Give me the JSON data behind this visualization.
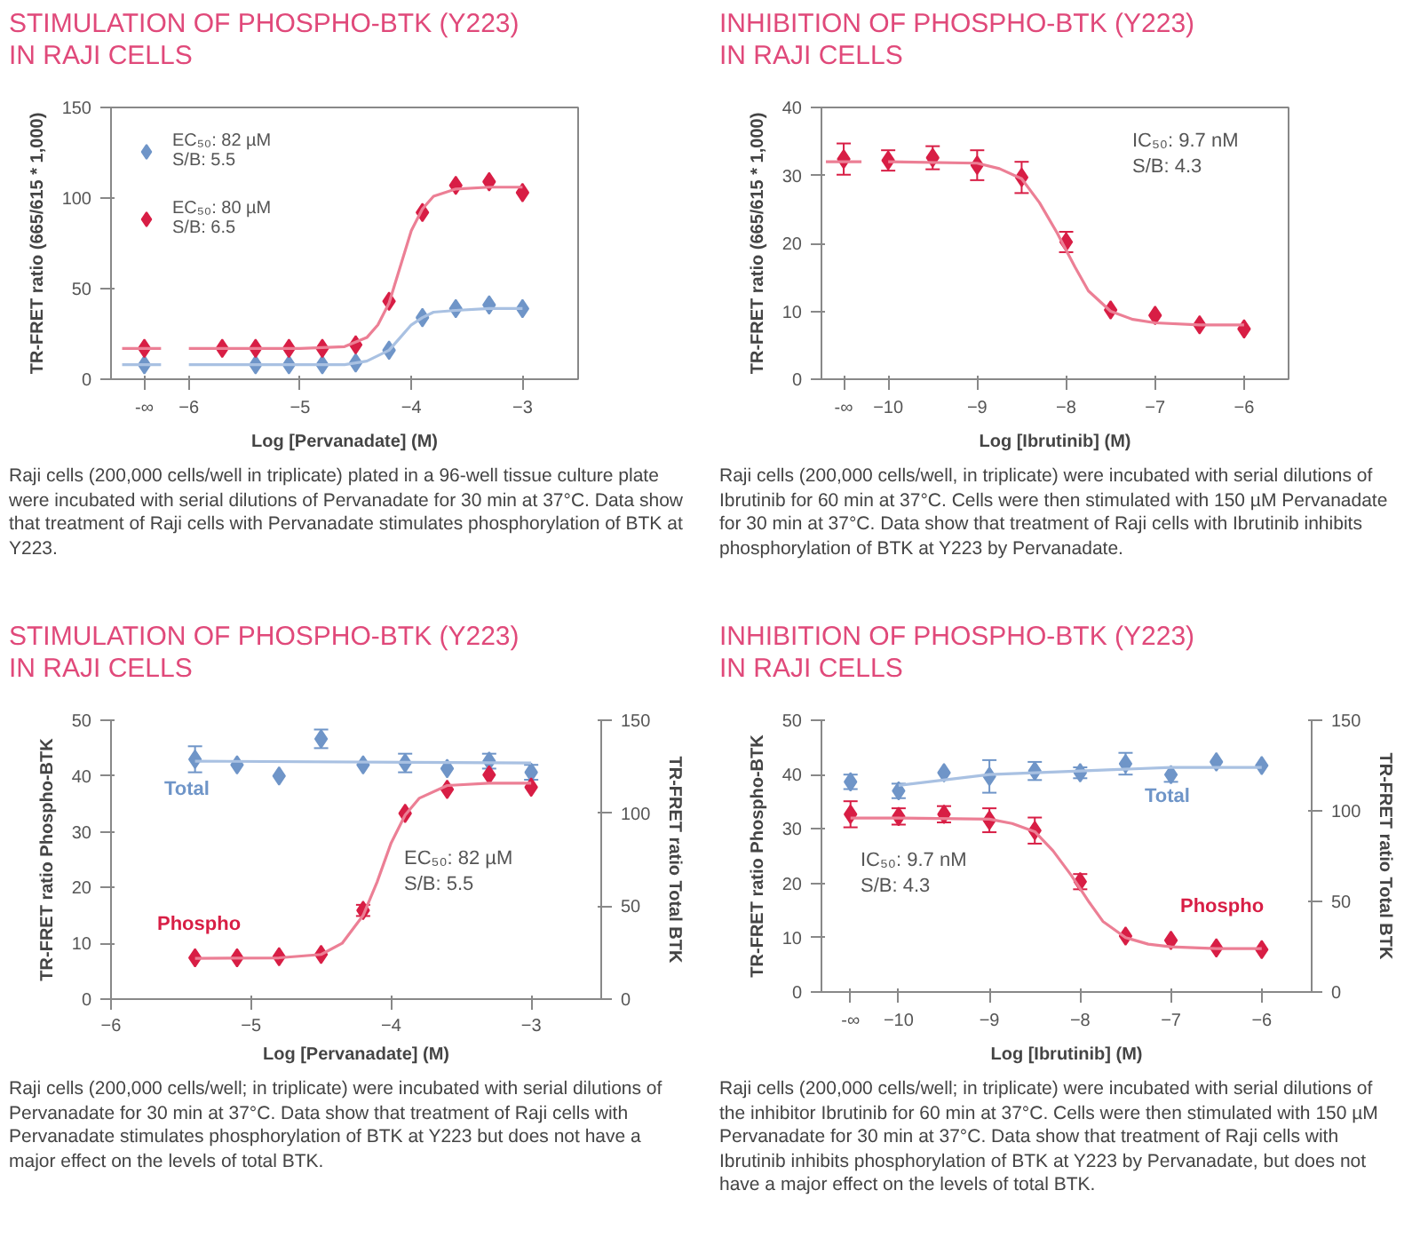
{
  "chart_data": [
    {
      "type": "scatter",
      "title": "STIMULATION OF PHOSPHO-BTK (Y223)\nIN RAJI CELLS",
      "xlabel": "Log [Pervanadate] (M)",
      "ylabel": "TR-FRET ratio (665/615 * 1,000)",
      "xlim": [
        -6.7,
        -2.5
      ],
      "ylim": [
        0,
        150
      ],
      "xticks": [
        {
          "value": -6.4,
          "label": "-∞"
        },
        -6,
        -5,
        -4,
        -3
      ],
      "yticks": [
        0,
        50,
        100,
        150
      ],
      "marker": "diamond",
      "legend": "top left",
      "series": [
        {
          "name": "EC₅₀: 82 µM\nS/B: 5.5",
          "color": "#6f95c8",
          "x": [
            -6.4,
            -5.4,
            -5.1,
            -4.8,
            -4.5,
            -4.2,
            -3.9,
            -3.6,
            -3.3,
            -3
          ],
          "values": [
            8,
            8,
            8,
            8,
            9,
            16,
            34,
            39,
            41,
            39
          ]
        },
        {
          "name": "EC₅₀: 80 µM\nS/B: 6.5",
          "color": "#d81e45",
          "x": [
            -6.4,
            -5.7,
            -5.4,
            -5.1,
            -4.8,
            -4.5,
            -4.2,
            -3.9,
            -3.6,
            -3.3,
            -3
          ],
          "values": [
            17,
            17,
            17,
            17,
            17,
            19,
            43,
            92,
            107,
            109,
            103
          ]
        },
        {
          "type": "line",
          "marker": "none",
          "color": "#a9c1e2",
          "x": [
            -6.6,
            -6.25,
            -6.1,
            -6,
            -5,
            -4.6,
            -4.4,
            -4.2,
            -4.1,
            -4,
            -3.9,
            -3.8,
            -3.6,
            -3.3,
            -3
          ],
          "values": [
            8,
            8,
            null,
            8,
            8,
            8,
            10,
            16,
            23,
            30,
            34,
            37,
            38,
            39,
            39
          ]
        },
        {
          "type": "line",
          "marker": "none",
          "color": "#ec7f95",
          "x": [
            -6.6,
            -6.25,
            -6.1,
            -6,
            -5,
            -4.6,
            -4.4,
            -4.3,
            -4.2,
            -4.1,
            -4,
            -3.9,
            -3.8,
            -3.6,
            -3.3,
            -3
          ],
          "values": [
            17,
            17,
            null,
            17,
            17,
            18,
            23,
            30,
            42,
            62,
            82,
            94,
            101,
            105,
            106,
            106
          ]
        }
      ],
      "annotations": [
        "Raji cells (200,000 cells/well in triplicate) plated in a 96-well tissue culture plate were incubated with serial dilutions of Pervanadate for 30 min at 37°C. Data show that treatment of Raji cells with Pervanadate stimulates phosphorylation of BTK at Y223."
      ]
    },
    {
      "type": "scatter",
      "title": "INHIBITION OF PHOSPHO-BTK (Y223)\nIN RAJI CELLS",
      "xlabel": "Log [Ibrutinib] (M)",
      "ylabel": "TR-FRET ratio (665/615 * 1,000)",
      "xlim": [
        -10.75,
        -5.5
      ],
      "ylim": [
        0,
        40
      ],
      "xticks": [
        {
          "value": -10.5,
          "label": "-∞"
        },
        -10,
        -9,
        -8,
        -7,
        -6
      ],
      "yticks": [
        0,
        10,
        20,
        30,
        40
      ],
      "marker": "diamond",
      "series": [
        {
          "color": "#d81e45",
          "x": [
            -10.5,
            -10,
            -9.5,
            -9,
            -8.5,
            -8,
            -7.5,
            -7,
            -6.5,
            -6
          ],
          "values": [
            32.4,
            32.2,
            32.6,
            31.5,
            29.7,
            20.2,
            10.2,
            9.4,
            8,
            7.4
          ],
          "errors": [
            2.3,
            1.5,
            1.7,
            2.2,
            2.3,
            1.5,
            null,
            null,
            null,
            null
          ]
        },
        {
          "type": "line",
          "marker": "none",
          "color": "#ec7f95",
          "x": [
            -10.7,
            -10.3,
            -10.15,
            -10,
            -9,
            -8.75,
            -8.5,
            -8.3,
            -8.1,
            -8,
            -7.9,
            -7.75,
            -7.5,
            -7.25,
            -7,
            -6.5,
            -6
          ],
          "values": [
            32,
            32,
            null,
            32,
            31.8,
            31,
            29.5,
            26,
            21.5,
            19,
            16.5,
            13,
            10,
            8.8,
            8.3,
            8,
            8
          ]
        }
      ],
      "annotations": [
        "IC₅₀: 9.7 nM\nS/B: 4.3",
        "Raji cells (200,000 cells/well, in triplicate) were incubated with serial dilutions of Ibrutinib for 60 min at 37°C. Cells were then stimulated with 150 µM Pervanadate for 30 min at 37°C. Data show that treatment of Raji cells with Ibrutinib inhibits phosphorylation of BTK at Y223 by Pervanadate."
      ]
    },
    {
      "type": "scatter",
      "title": "STIMULATION OF PHOSPHO-BTK (Y223)\nIN RAJI CELLS",
      "xlabel": "Log [Pervanadate] (M)",
      "ylabel": "TR-FRET ratio Phospho-BTK",
      "y2label": "TR-FRET ratio Total BTK",
      "xlim": [
        -6,
        -2.5
      ],
      "ylim": [
        0,
        50
      ],
      "y2lim": [
        0,
        150
      ],
      "xticks": [
        -6,
        -5,
        -4,
        -3
      ],
      "yticks": [
        0,
        10,
        20,
        30,
        40,
        50
      ],
      "y2ticks": [
        0,
        50,
        100,
        150
      ],
      "marker": "diamond",
      "series": [
        {
          "name": "Total",
          "axis": "y2",
          "color": "#6f95c8",
          "x": [
            -5.4,
            -5.1,
            -4.8,
            -4.5,
            -4.2,
            -3.9,
            -3.6,
            -3.3,
            -3
          ],
          "values": [
            129,
            126,
            120,
            140,
            126,
            127,
            124,
            128,
            122
          ],
          "errors": [
            7,
            null,
            null,
            5,
            null,
            5,
            null,
            4,
            4
          ]
        },
        {
          "type": "line",
          "marker": "none",
          "axis": "y2",
          "color": "#a9c1e2",
          "x": [
            -5.4,
            -3
          ],
          "values": [
            128,
            127
          ]
        },
        {
          "name": "Phospho",
          "color": "#d81e45",
          "x": [
            -5.4,
            -5.1,
            -4.8,
            -4.5,
            -4.2,
            -3.9,
            -3.6,
            -3.3,
            -3
          ],
          "values": [
            7.4,
            7.4,
            7.6,
            8,
            15.9,
            33.3,
            37.6,
            40.2,
            38
          ],
          "errors": [
            null,
            null,
            null,
            null,
            1,
            null,
            null,
            null,
            null
          ]
        },
        {
          "type": "line",
          "marker": "none",
          "color": "#ec7f95",
          "x": [
            -5.4,
            -4.8,
            -4.5,
            -4.35,
            -4.2,
            -4.1,
            -4,
            -3.9,
            -3.8,
            -3.6,
            -3.3,
            -3
          ],
          "values": [
            7.3,
            7.4,
            8,
            10,
            15,
            21,
            28,
            33,
            36,
            38.3,
            38.7,
            38.7
          ]
        }
      ],
      "annotations": [
        "EC₅₀: 82 µM\nS/B: 5.5",
        "Raji cells (200,000 cells/well; in triplicate) were incubated with serial dilutions of Pervanadate for 30 min at 37°C. Data show that treatment of Raji cells with Pervanadate stimulates phosphorylation of BTK at Y223 but does not have a major effect on the levels of total BTK."
      ]
    },
    {
      "type": "scatter",
      "title": "INHIBITION OF PHOSPHO-BTK (Y223)\nIN RAJI CELLS",
      "xlabel": "Log [Ibrutinib] (M)",
      "ylabel": "TR-FRET ratio Phospho-BTK",
      "y2label": "TR-FRET ratio Total BTK",
      "xlim": [
        -10.85,
        -5.45
      ],
      "ylim": [
        0,
        50
      ],
      "y2lim": [
        0,
        150
      ],
      "xticks": [
        {
          "value": -10.53,
          "label": "-∞"
        },
        -10,
        -9,
        -8,
        -7,
        -6
      ],
      "yticks": [
        0,
        10,
        20,
        30,
        40,
        50
      ],
      "y2ticks": [
        0,
        50,
        100,
        150
      ],
      "marker": "diamond",
      "series": [
        {
          "name": "Total",
          "axis": "y2",
          "color": "#6f95c8",
          "x": [
            -10.53,
            -10,
            -9.5,
            -9,
            -8.5,
            -8,
            -7.5,
            -7,
            -6.5,
            -6
          ],
          "values": [
            116,
            111,
            121,
            119,
            122,
            121,
            126,
            120,
            127,
            125
          ],
          "errors": [
            4,
            4,
            null,
            9,
            5,
            3,
            6,
            4,
            null,
            null
          ]
        },
        {
          "type": "line",
          "marker": "none",
          "axis": "y2",
          "color": "#a9c1e2",
          "x": [
            -10,
            -9,
            -8,
            -7,
            -6
          ],
          "values": [
            114,
            120,
            122,
            124,
            124
          ]
        },
        {
          "name": "Phospho",
          "color": "#d81e45",
          "x": [
            -10.53,
            -10,
            -9.5,
            -9,
            -8.5,
            -8,
            -7.5,
            -7,
            -6.5,
            -6
          ],
          "values": [
            32.7,
            32.3,
            32.7,
            31.6,
            29.7,
            20.3,
            10.3,
            9.5,
            8.1,
            7.8
          ],
          "errors": [
            2.4,
            1.5,
            1.5,
            2.2,
            2.4,
            1.4,
            null,
            null,
            null,
            null
          ]
        },
        {
          "type": "line",
          "marker": "none",
          "color": "#ec7f95",
          "x": [
            -10.53,
            -10,
            -9,
            -8.75,
            -8.5,
            -8.3,
            -8.1,
            -8,
            -7.9,
            -7.75,
            -7.5,
            -7.25,
            -7,
            -6.5,
            -6
          ],
          "values": [
            32,
            32,
            31.8,
            31,
            29.5,
            26,
            21.5,
            19,
            16.5,
            13,
            10,
            8.8,
            8.3,
            8,
            8
          ]
        }
      ],
      "annotations": [
        "IC₅₀: 9.7 nM\nS/B: 4.3",
        "Raji cells (200,000 cells/well; in triplicate) were incubated with serial dilutions of the inhibitor Ibrutinib for 60 min at 37°C. Cells were then stimulated with 150 µM Pervanadate for 30 min at 37°C. Data show that treatment of Raji cells with Ibrutinib inhibits phosphorylation of BTK at Y223 by Pervanadate, but does not have a major effect on the levels of total BTK."
      ]
    }
  ]
}
